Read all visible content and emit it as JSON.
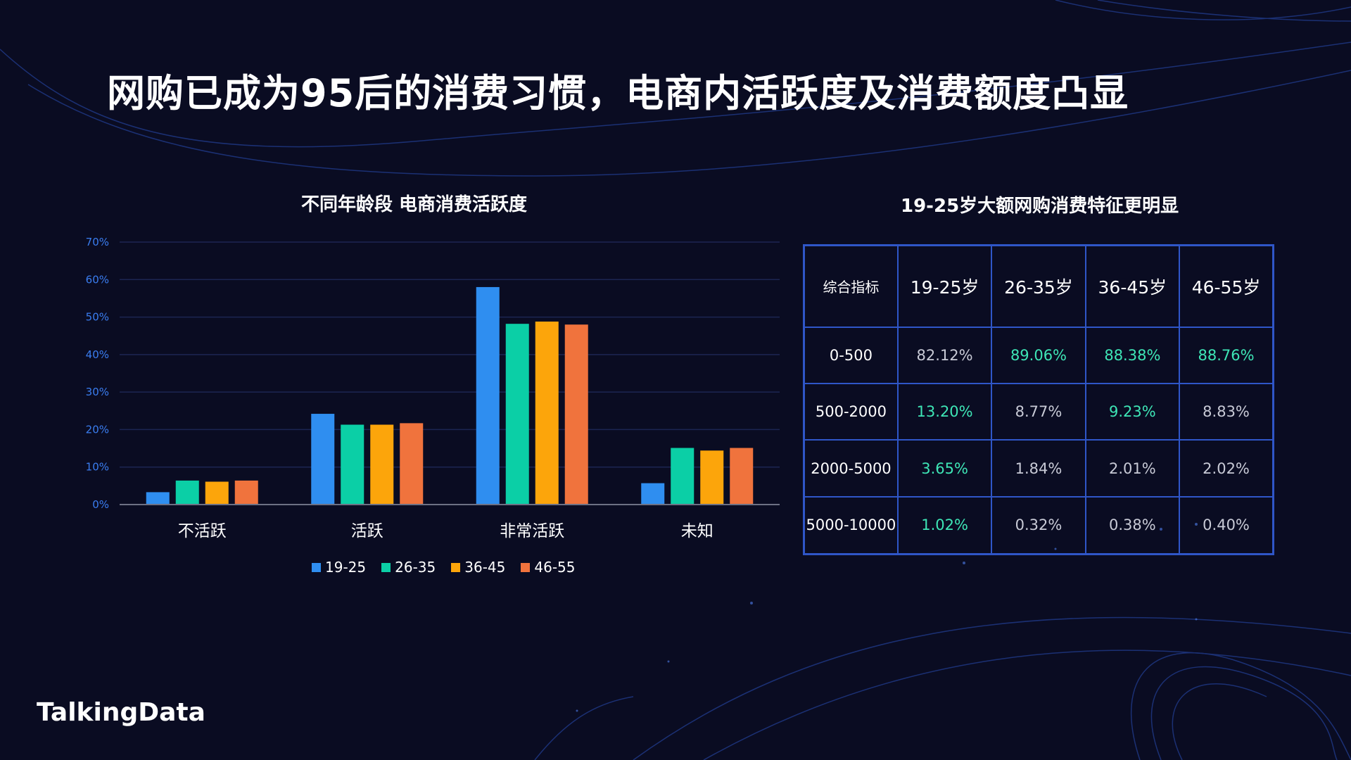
{
  "header": {
    "title": "网购已成为95后的消费习惯，电商内活跃度及消费额度凸显"
  },
  "chart_data": {
    "type": "bar",
    "title": "不同年龄段 电商消费活跃度",
    "categories": [
      "不活跃",
      "活跃",
      "非常活跃",
      "未知"
    ],
    "series": [
      {
        "name": "19-25",
        "color": "#2f8ef0",
        "values": [
          3.3,
          24.2,
          58.0,
          5.7
        ]
      },
      {
        "name": "26-35",
        "color": "#0bcfa6",
        "values": [
          6.4,
          21.3,
          48.2,
          15.1
        ]
      },
      {
        "name": "36-45",
        "color": "#fca50b",
        "values": [
          6.1,
          21.3,
          48.8,
          14.4
        ]
      },
      {
        "name": "46-55",
        "color": "#f0733d",
        "values": [
          6.4,
          21.7,
          48.0,
          15.1
        ]
      }
    ],
    "ylim": [
      0,
      70
    ],
    "yticks": [
      "0%",
      "10%",
      "20%",
      "30%",
      "40%",
      "50%",
      "60%",
      "70%"
    ],
    "grid": true,
    "legend_position": "bottom-center"
  },
  "table": {
    "title": "19-25岁大额网购消费特征更明显",
    "headers": [
      "综合指标",
      "19-25岁",
      "26-35岁",
      "36-45岁",
      "46-55岁"
    ],
    "rows": [
      {
        "label": "0-500",
        "cells": [
          {
            "v": "82.12%",
            "hl": false
          },
          {
            "v": "89.06%",
            "hl": true
          },
          {
            "v": "88.38%",
            "hl": true
          },
          {
            "v": "88.76%",
            "hl": true
          }
        ]
      },
      {
        "label": "500-2000",
        "cells": [
          {
            "v": "13.20%",
            "hl": true
          },
          {
            "v": "8.77%",
            "hl": false
          },
          {
            "v": "9.23%",
            "hl": true
          },
          {
            "v": "8.83%",
            "hl": false
          }
        ]
      },
      {
        "label": "2000-5000",
        "cells": [
          {
            "v": "3.65%",
            "hl": true
          },
          {
            "v": "1.84%",
            "hl": false
          },
          {
            "v": "2.01%",
            "hl": false
          },
          {
            "v": "2.02%",
            "hl": false
          }
        ]
      },
      {
        "label": "5000-10000",
        "cells": [
          {
            "v": "1.02%",
            "hl": true
          },
          {
            "v": "0.32%",
            "hl": false
          },
          {
            "v": "0.38%",
            "hl": false
          },
          {
            "v": "0.40%",
            "hl": false
          }
        ]
      }
    ],
    "highlight_color": "#3ee6b6"
  },
  "brand": {
    "logo_text": "TalkingData"
  }
}
